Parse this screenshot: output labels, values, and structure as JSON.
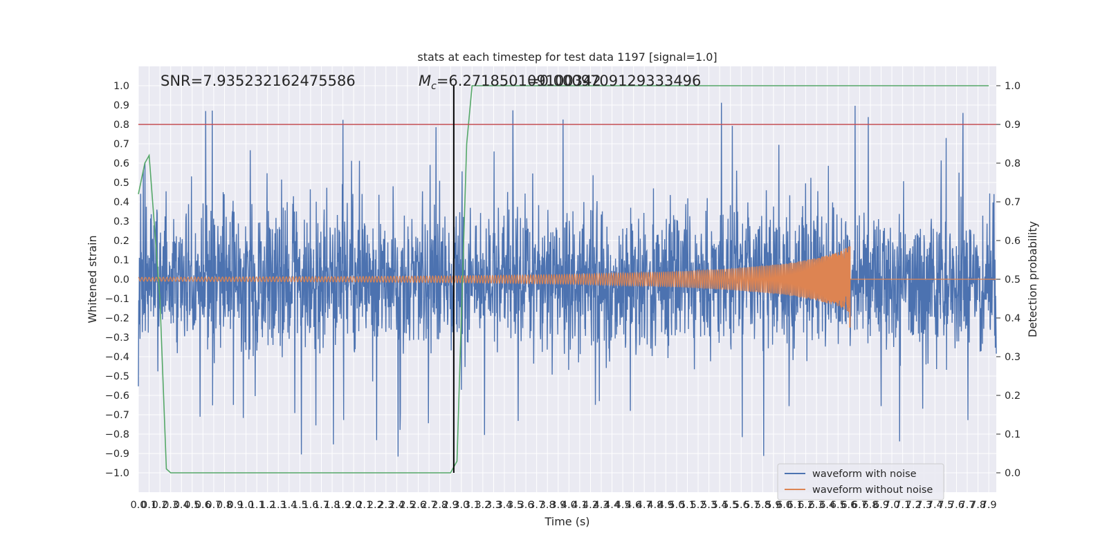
{
  "chart_data": {
    "type": "line",
    "title": "stats at each timestep for test data 1197 [signal=1.0]",
    "xlabel": "Time (s)",
    "ylabel": "Whitened strain",
    "y2label": "Detection probability",
    "xlim": [
      0.0,
      7.97
    ],
    "ylim": [
      -1.1,
      1.1
    ],
    "y2lim": [
      -0.05,
      1.05
    ],
    "x_ticks": [
      "0.0",
      "0.1",
      "0.2",
      "0.3",
      "0.4",
      "0.5",
      "0.6",
      "0.7",
      "0.8",
      "0.9",
      "1.0",
      "1.1",
      "1.2",
      "1.3",
      "1.4",
      "1.5",
      "1.6",
      "1.7",
      "1.8",
      "1.9",
      "2.0",
      "2.1",
      "2.2",
      "2.3",
      "2.4",
      "2.5",
      "2.6",
      "2.7",
      "2.8",
      "2.9",
      "3.0",
      "3.1",
      "3.2",
      "3.3",
      "3.4",
      "3.5",
      "3.6",
      "3.7",
      "3.8",
      "3.9",
      "4.0",
      "4.1",
      "4.2",
      "4.3",
      "4.4",
      "4.5",
      "4.6",
      "4.7",
      "4.8",
      "4.9",
      "5.0",
      "5.1",
      "5.2",
      "5.3",
      "5.4",
      "5.5",
      "5.6",
      "5.7",
      "5.8",
      "5.9",
      "6.0",
      "6.1",
      "6.2",
      "6.3",
      "6.4",
      "6.5",
      "6.6",
      "6.7",
      "6.8",
      "6.9",
      "7.0",
      "7.1",
      "7.2",
      "7.3",
      "7.4",
      "7.5",
      "7.6",
      "7.7",
      "7.8",
      "7.9"
    ],
    "y_ticks": [
      "1.0",
      "0.9",
      "0.8",
      "0.7",
      "0.6",
      "0.5",
      "0.4",
      "0.3",
      "0.2",
      "0.1",
      "0.0",
      "−0.1",
      "−0.2",
      "−0.3",
      "−0.4",
      "−0.5",
      "−0.6",
      "−0.7",
      "−0.8",
      "−0.9",
      "−1.0"
    ],
    "y2_ticks": [
      "1.0",
      "0.9",
      "0.8",
      "0.7",
      "0.6",
      "0.5",
      "0.4",
      "0.3",
      "0.2",
      "0.1",
      "0.0"
    ],
    "annotations": {
      "snr": "SNR=7.935232162475586",
      "mc": "M",
      "mc_sub": "c",
      "mc_value": "=6.271850109100342",
      "overlap": "=0.0009709129333496"
    },
    "series": [
      {
        "name": "waveform with noise",
        "color": "#4c72b0",
        "envelope": {
          "typical_amplitude": 0.4,
          "max": 0.97,
          "min": -1.0
        }
      },
      {
        "name": "waveform without noise",
        "color": "#dd8452",
        "amplitude": [
          [
            0.0,
            0.01
          ],
          [
            1.0,
            0.012
          ],
          [
            2.0,
            0.014
          ],
          [
            3.0,
            0.018
          ],
          [
            4.0,
            0.025
          ],
          [
            5.0,
            0.04
          ],
          [
            5.5,
            0.055
          ],
          [
            6.0,
            0.08
          ],
          [
            6.3,
            0.11
          ],
          [
            6.5,
            0.14
          ],
          [
            6.6,
            0.17
          ],
          [
            6.62,
            0.0
          ],
          [
            7.97,
            0.0
          ]
        ],
        "min": -0.25
      },
      {
        "color": "#55a868",
        "axis": "y2",
        "x": [
          0.0,
          0.06,
          0.1,
          0.2,
          0.26,
          0.3,
          0.6,
          1.0,
          2.0,
          2.5,
          2.8,
          2.9,
          2.96,
          3.0,
          3.05,
          3.1,
          4.0,
          5.0,
          6.0,
          7.0,
          7.9
        ],
        "y": [
          0.72,
          0.8,
          0.82,
          0.45,
          0.01,
          0.0,
          0.0,
          0.0,
          0.0,
          0.0,
          0.0,
          0.0,
          0.03,
          0.4,
          0.85,
          1.0,
          1.0,
          1.0,
          1.0,
          1.0,
          1.0
        ]
      }
    ],
    "threshold": {
      "value": 0.9,
      "axis": "y2",
      "color": "#c44e52"
    },
    "vline": {
      "x": 2.93,
      "ymin": -1.0,
      "ymax": 1.0,
      "color": "#000000"
    },
    "legend": {
      "position": "lower-right",
      "entries": [
        "waveform with noise",
        "waveform without noise"
      ]
    },
    "grid": true,
    "background": "#eaeaf2"
  }
}
